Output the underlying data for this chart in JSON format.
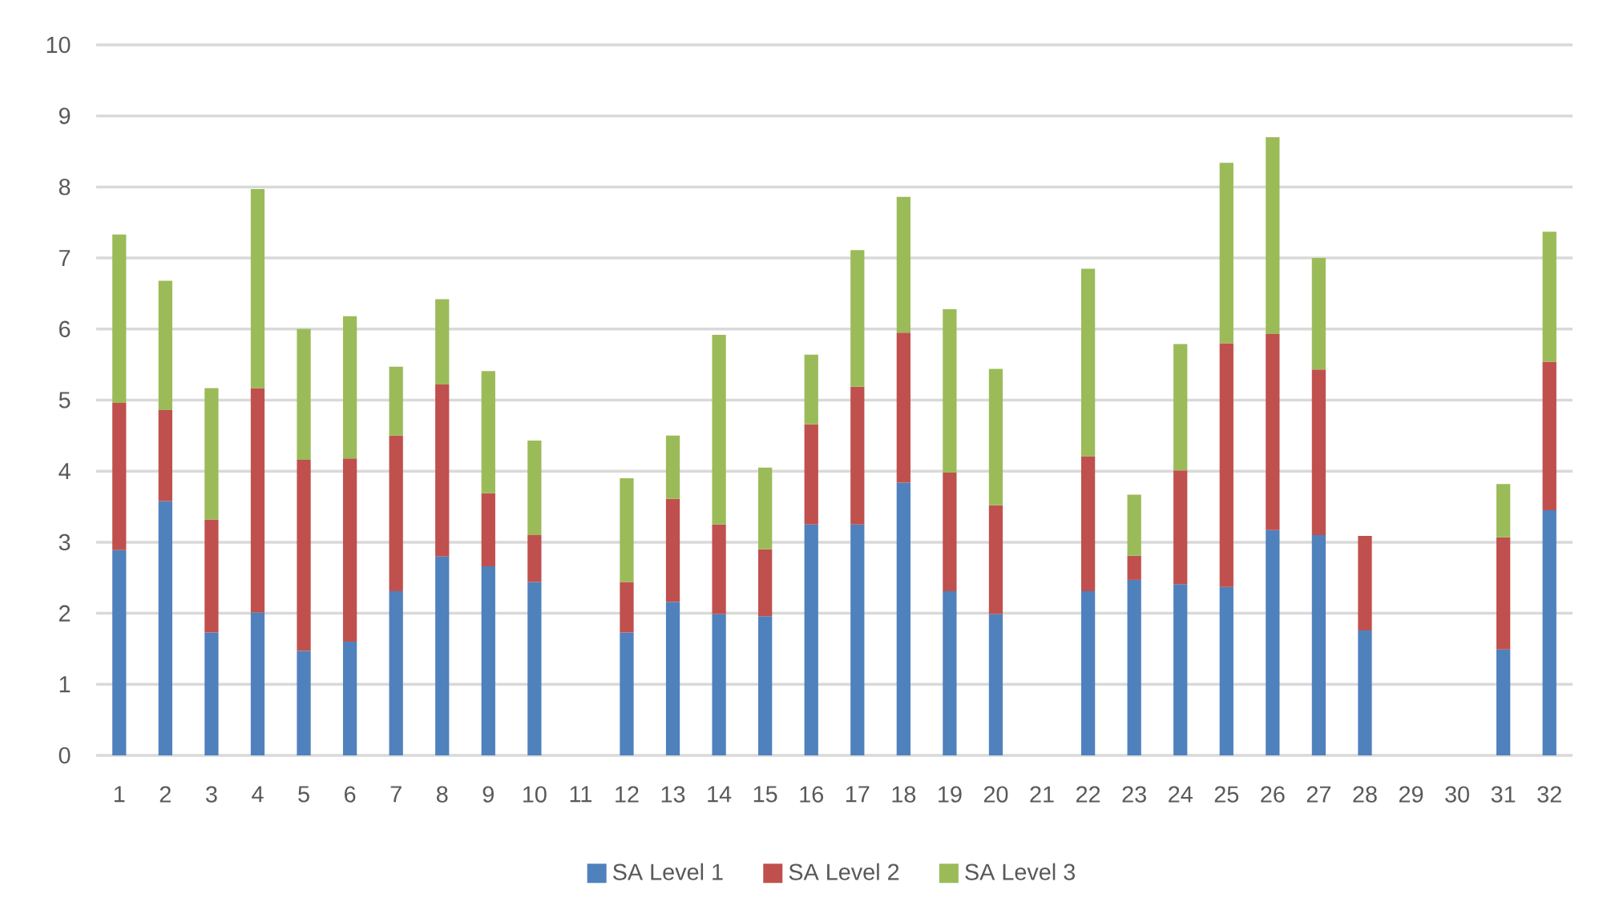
{
  "chart_data": {
    "type": "bar",
    "stacked": true,
    "categories": [
      "1",
      "2",
      "3",
      "4",
      "5",
      "6",
      "7",
      "8",
      "9",
      "10",
      "11",
      "12",
      "13",
      "14",
      "15",
      "16",
      "17",
      "18",
      "19",
      "20",
      "21",
      "22",
      "23",
      "24",
      "25",
      "26",
      "27",
      "28",
      "29",
      "30",
      "31",
      "32"
    ],
    "series": [
      {
        "name": "SA Level 1",
        "color": "#4f81bd",
        "values": [
          2.89,
          3.58,
          1.73,
          2.01,
          1.47,
          1.6,
          2.31,
          2.8,
          2.66,
          2.44,
          null,
          1.73,
          2.16,
          1.99,
          1.96,
          3.25,
          3.25,
          3.84,
          2.31,
          1.99,
          null,
          2.31,
          2.47,
          2.41,
          2.37,
          3.17,
          3.1,
          1.76,
          null,
          null,
          1.49,
          3.45
        ]
      },
      {
        "name": "SA Level 2",
        "color": "#c0504d",
        "values": [
          2.07,
          1.28,
          1.59,
          3.16,
          2.69,
          2.58,
          2.19,
          2.42,
          1.03,
          0.66,
          null,
          0.71,
          1.45,
          1.26,
          0.94,
          1.41,
          1.94,
          2.11,
          1.67,
          1.53,
          null,
          1.9,
          0.34,
          1.6,
          3.43,
          2.76,
          2.33,
          1.33,
          null,
          null,
          1.58,
          2.09
        ]
      },
      {
        "name": "SA Level 3",
        "color": "#9bbb59",
        "values": [
          2.37,
          1.82,
          1.85,
          2.8,
          1.84,
          2.0,
          0.97,
          1.2,
          1.72,
          1.33,
          null,
          1.46,
          0.89,
          2.67,
          1.15,
          0.98,
          1.92,
          1.91,
          2.3,
          1.92,
          null,
          2.64,
          0.86,
          1.78,
          2.54,
          2.77,
          1.57,
          null,
          null,
          null,
          0.75,
          1.83
        ]
      }
    ],
    "ylim": [
      0,
      10
    ],
    "yticks": [
      0,
      1,
      2,
      3,
      4,
      5,
      6,
      7,
      8,
      9,
      10
    ],
    "grid": "y",
    "legend": "bottom"
  }
}
